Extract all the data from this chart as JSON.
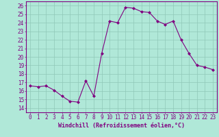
{
  "x": [
    0,
    1,
    2,
    3,
    4,
    5,
    6,
    7,
    8,
    9,
    10,
    11,
    12,
    13,
    14,
    15,
    16,
    17,
    18,
    19,
    20,
    21,
    22,
    23
  ],
  "y": [
    16.6,
    16.5,
    16.6,
    16.1,
    15.4,
    14.8,
    14.7,
    17.2,
    15.4,
    20.4,
    24.2,
    24.0,
    25.8,
    25.7,
    25.3,
    25.2,
    24.2,
    23.8,
    24.2,
    22.0,
    20.4,
    19.0,
    18.8,
    18.5
  ],
  "xlabel": "Windchill (Refroidissement éolien,°C)",
  "xlim": [
    -0.5,
    23.5
  ],
  "ylim": [
    13.5,
    26.5
  ],
  "yticks": [
    14,
    15,
    16,
    17,
    18,
    19,
    20,
    21,
    22,
    23,
    24,
    25,
    26
  ],
  "xticks": [
    0,
    1,
    2,
    3,
    4,
    5,
    6,
    7,
    8,
    9,
    10,
    11,
    12,
    13,
    14,
    15,
    16,
    17,
    18,
    19,
    20,
    21,
    22,
    23
  ],
  "line_color": "#800080",
  "marker_color": "#800080",
  "bg_color": "#b0e8d8",
  "grid_color": "#90c8b8",
  "axis_color": "#800080",
  "tick_color": "#800080",
  "label_color": "#800080",
  "font_size": 5.5,
  "xlabel_fontsize": 6.0
}
